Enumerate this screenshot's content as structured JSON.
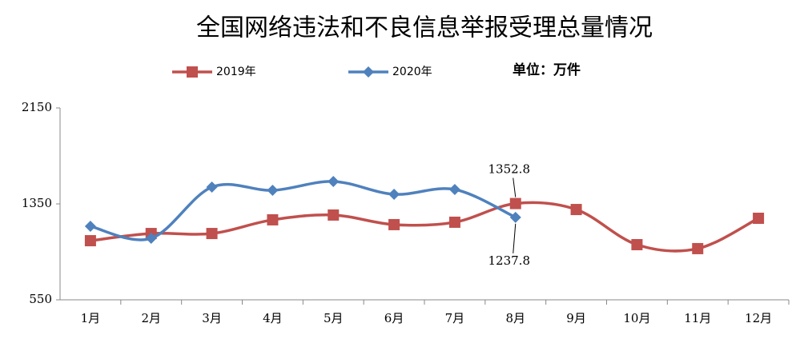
{
  "chart_data": {
    "type": "line",
    "title": "全国网络违法和不良信息举报受理总量情况",
    "unit": "单位：万件",
    "categories": [
      "1月",
      "2月",
      "3月",
      "4月",
      "5月",
      "6月",
      "7月",
      "8月",
      "9月",
      "10月",
      "11月",
      "12月"
    ],
    "series": [
      {
        "name": "2019年",
        "color": "#c0504d",
        "marker": "square",
        "values": [
          1043,
          1103,
          1103,
          1217,
          1257,
          1177,
          1197,
          1352.8,
          1303,
          1010,
          977,
          1230
        ],
        "value_labels": [
          null,
          null,
          null,
          null,
          null,
          null,
          null,
          "1352.8",
          null,
          null,
          null,
          null
        ]
      },
      {
        "name": "2020年",
        "color": "#4f81bd",
        "marker": "diamond",
        "values": [
          1163,
          1063,
          1490,
          1463,
          1537,
          1430,
          1470,
          1237.8,
          null,
          null,
          null,
          null
        ],
        "value_labels": [
          null,
          null,
          null,
          null,
          null,
          null,
          null,
          "1237.8",
          null,
          null,
          null,
          null
        ]
      }
    ],
    "ylim": [
      550,
      2150
    ],
    "yticks": [
      550,
      1350,
      2150
    ],
    "grid": false,
    "legend": "top",
    "smooth": true
  }
}
